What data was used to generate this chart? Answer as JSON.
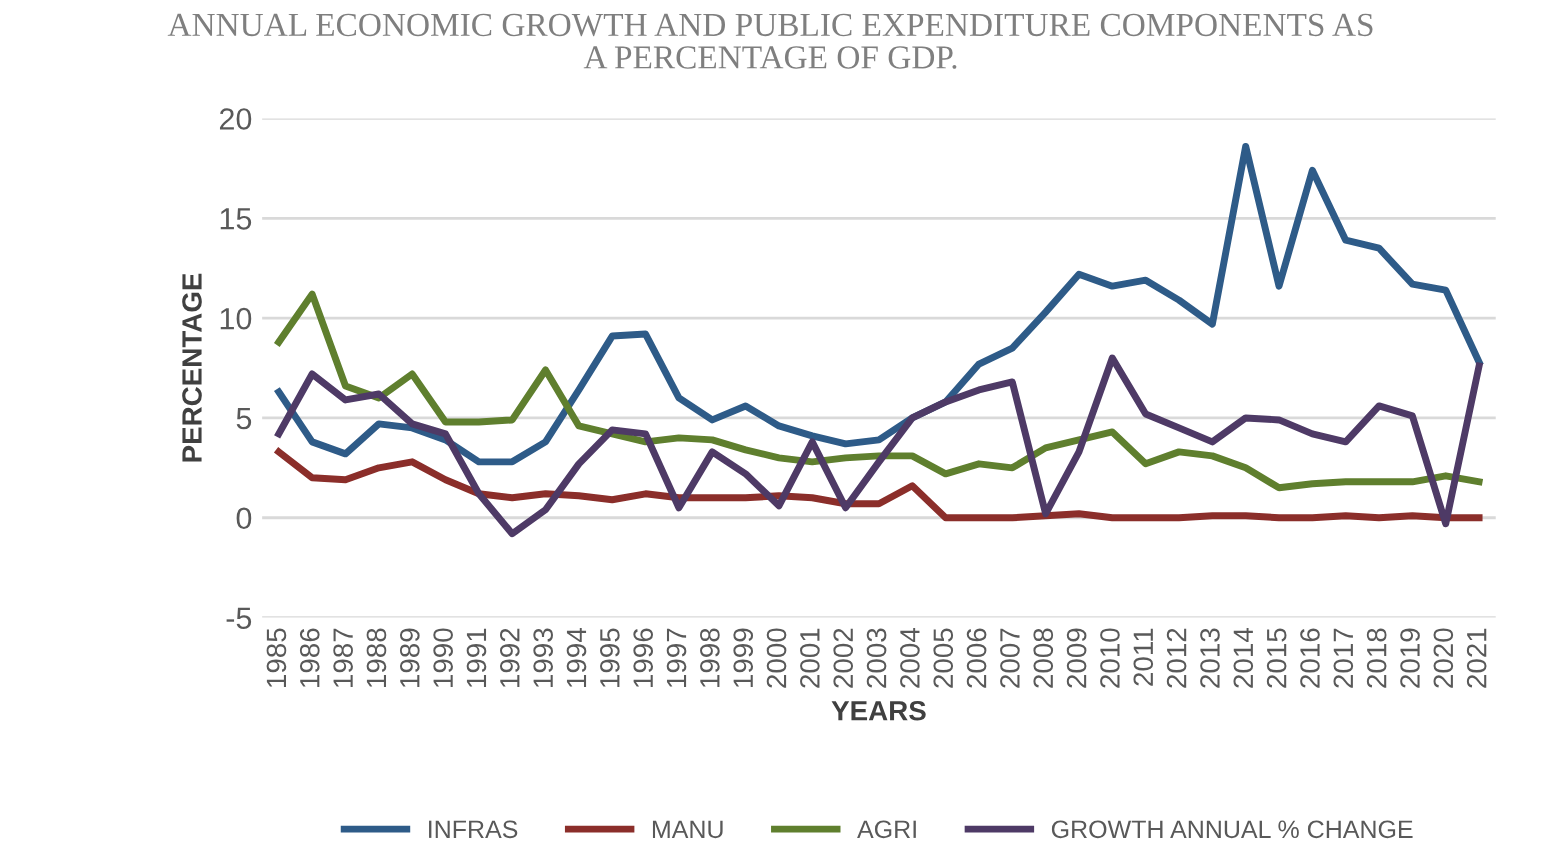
{
  "chart_data": {
    "type": "line",
    "title": "ANNUAL ECONOMIC GROWTH AND PUBLIC EXPENDITURE COMPONENTS AS\nA PERCENTAGE OF GDP.",
    "xlabel": "YEARS",
    "ylabel": "PERCENTAGE",
    "categories": [
      "1985",
      "1986",
      "1987",
      "1988",
      "1989",
      "1990",
      "1991",
      "1992",
      "1993",
      "1994",
      "1995",
      "1996",
      "1997",
      "1998",
      "1999",
      "2000",
      "2001",
      "2002",
      "2003",
      "2004",
      "2005",
      "2006",
      "2007",
      "2008",
      "2009",
      "2010",
      "2011",
      "2012",
      "2013",
      "2014",
      "2015",
      "2016",
      "2017",
      "2018",
      "2019",
      "2020",
      "2021"
    ],
    "series": [
      {
        "name": "INFRAS",
        "color": "#2e5b88",
        "values": [
          6.3,
          3.8,
          3.2,
          4.7,
          4.5,
          3.9,
          2.8,
          2.8,
          3.8,
          6.4,
          9.1,
          9.2,
          6.0,
          4.9,
          5.6,
          4.6,
          4.1,
          3.7,
          3.9,
          5.0,
          5.8,
          7.7,
          8.5,
          10.3,
          12.2,
          11.6,
          11.9,
          10.9,
          9.7,
          18.6,
          11.6,
          17.4,
          13.9,
          13.5,
          11.7,
          11.4,
          7.8
        ]
      },
      {
        "name": "MANU",
        "color": "#8b2e2a",
        "values": [
          3.3,
          2.0,
          1.9,
          2.5,
          2.8,
          1.9,
          1.2,
          1.0,
          1.2,
          1.1,
          0.9,
          1.2,
          1.0,
          1.0,
          1.0,
          1.1,
          1.0,
          0.7,
          0.7,
          1.6,
          0.0,
          0.0,
          0.0,
          0.1,
          0.2,
          0.0,
          0.0,
          0.0,
          0.1,
          0.1,
          0.0,
          0.0,
          0.1,
          0.0,
          0.1,
          0.0,
          0.0
        ]
      },
      {
        "name": "AGRI",
        "color": "#5f7f2e",
        "values": [
          8.8,
          11.2,
          6.6,
          6.0,
          7.2,
          4.8,
          4.8,
          4.9,
          7.4,
          4.6,
          4.2,
          3.8,
          4.0,
          3.9,
          3.4,
          3.0,
          2.8,
          3.0,
          3.1,
          3.1,
          2.2,
          2.7,
          2.5,
          3.5,
          3.9,
          4.3,
          2.7,
          3.3,
          3.1,
          2.5,
          1.5,
          1.7,
          1.8,
          1.8,
          1.8,
          2.1,
          1.8
        ]
      },
      {
        "name": "GROWTH ANNUAL % CHANGE",
        "color": "#4e3a66",
        "values": [
          4.2,
          7.2,
          5.9,
          6.2,
          4.7,
          4.2,
          1.2,
          -0.8,
          0.4,
          2.7,
          4.4,
          4.2,
          0.5,
          3.3,
          2.2,
          0.6,
          3.8,
          0.5,
          2.8,
          5.0,
          5.8,
          6.4,
          6.8,
          0.2,
          3.3,
          8.0,
          5.2,
          4.5,
          3.8,
          5.0,
          4.9,
          4.2,
          3.8,
          5.6,
          5.1,
          -0.3,
          7.6
        ]
      }
    ],
    "ylim": [
      -5,
      20
    ],
    "yticks": [
      -5,
      0,
      5,
      10,
      15,
      20
    ],
    "grid": "y",
    "legend": "bottom",
    "marker": "none",
    "line_style": "solid"
  }
}
